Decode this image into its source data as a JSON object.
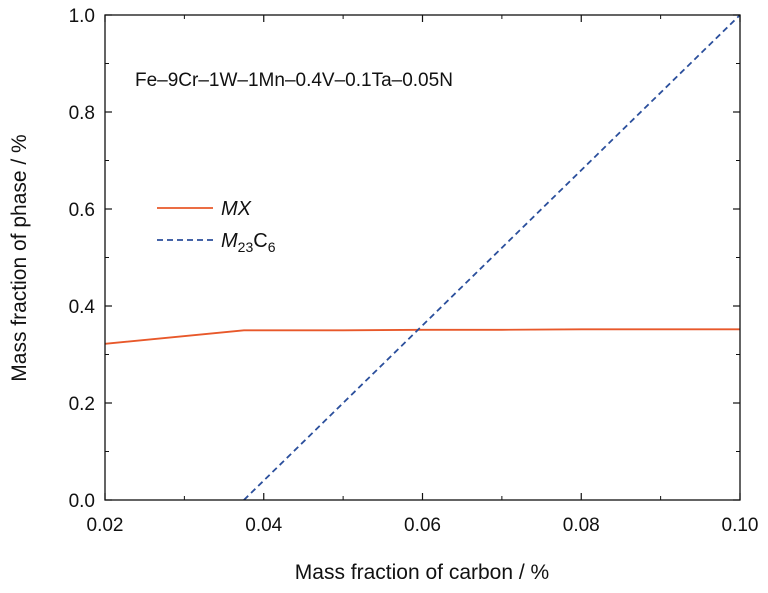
{
  "chart_data": {
    "type": "line",
    "xlabel": "Mass fraction of carbon / %",
    "ylabel": "Mass fraction of phase / %",
    "xlim": [
      0.02,
      0.1
    ],
    "ylim": [
      0.0,
      1.0
    ],
    "x_ticks": [
      "0.02",
      "0.04",
      "0.06",
      "0.08",
      "0.10"
    ],
    "y_ticks": [
      "0.0",
      "0.2",
      "0.4",
      "0.6",
      "0.8",
      "1.0"
    ],
    "annotation": "Fe–9Cr–1W–1Mn–0.4V–0.1Ta–0.05N",
    "legend_position": "left",
    "grid": false,
    "series": [
      {
        "name": "MX",
        "name_parts": {
          "main": "MX",
          "sub1": "",
          "mid": "",
          "sub2": ""
        },
        "color": "#e8582a",
        "style": "solid",
        "x": [
          0.02,
          0.0375,
          0.05,
          0.06,
          0.07,
          0.08,
          0.09,
          0.1
        ],
        "y": [
          0.322,
          0.35,
          0.35,
          0.351,
          0.351,
          0.352,
          0.352,
          0.352
        ]
      },
      {
        "name": "M23C6",
        "name_parts": {
          "main": "M",
          "sub1": "23",
          "mid": "C",
          "sub2": "6"
        },
        "color": "#2b4f9c",
        "style": "dashed",
        "x": [
          0.0375,
          0.1
        ],
        "y": [
          0.0,
          1.0
        ]
      }
    ]
  }
}
